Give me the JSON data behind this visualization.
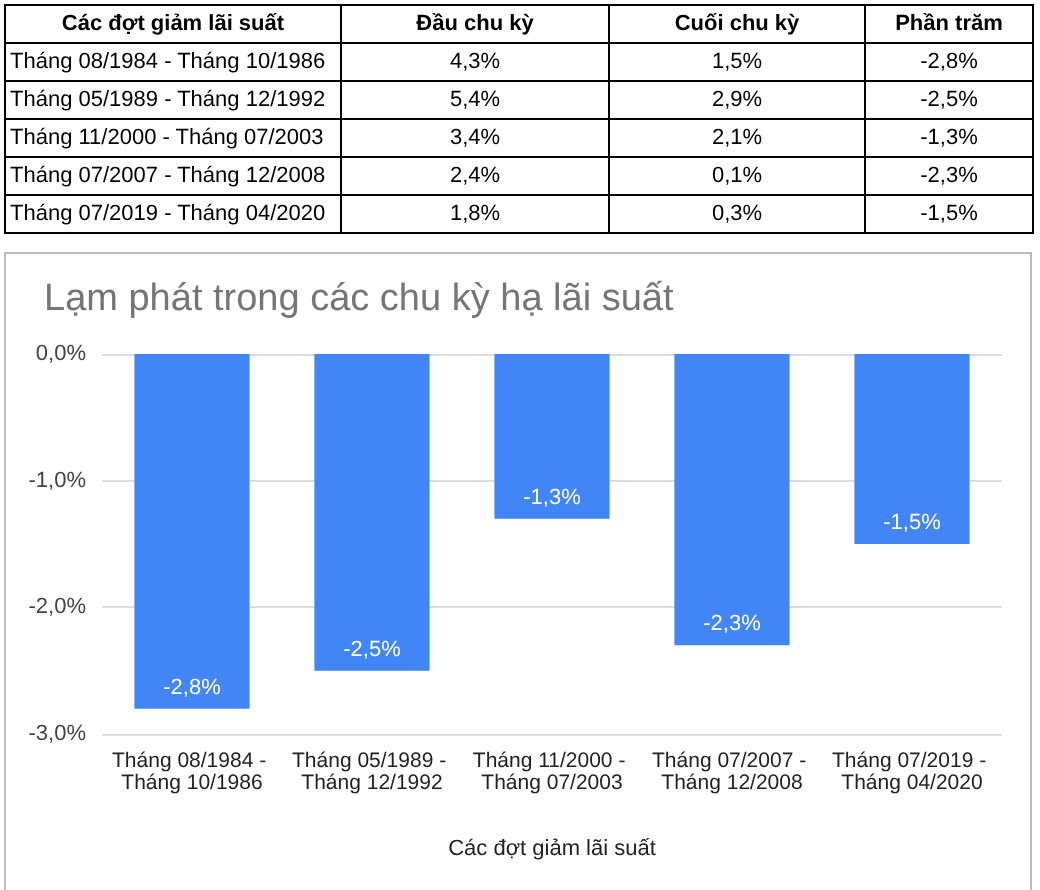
{
  "chart_data": [
    {
      "type": "other",
      "xlabel": "Các đợt giảm lãi suất",
      "categories": [
        "Tháng 08/1984 - Tháng 10/1986",
        "Tháng 05/1989 - Tháng 12/1992",
        "Tháng 11/2000 - Tháng 07/2003",
        "Tháng 07/2007 - Tháng 12/2008",
        "Tháng 07/2019 - Tháng 04/2020"
      ],
      "series": [
        {
          "name": "Đầu chu kỳ",
          "values": [
            4.3,
            5.4,
            3.4,
            2.4,
            1.8
          ],
          "value_labels": [
            "4,3%",
            "5,4%",
            "3,4%",
            "2,4%",
            "1,8%"
          ]
        },
        {
          "name": "Cuối chu kỳ",
          "values": [
            1.5,
            2.9,
            2.1,
            0.1,
            0.3
          ],
          "value_labels": [
            "1,5%",
            "2,9%",
            "2,1%",
            "0,1%",
            "0,3%"
          ]
        },
        {
          "name": "Phần trăm",
          "values": [
            -2.8,
            -2.5,
            -1.3,
            -2.3,
            -1.5
          ],
          "value_labels": [
            "-2,8%",
            "-2,5%",
            "-1,3%",
            "-2,3%",
            "-1,5%"
          ]
        }
      ]
    },
    {
      "type": "bar",
      "title": "Lạm phát trong các chu kỳ hạ lãi suất",
      "xlabel": "Các đợt giảm lãi suất",
      "categories": [
        "Tháng 08/1984 - Tháng 10/1986",
        "Tháng 05/1989 - Tháng 12/1992",
        "Tháng 11/2000 - Tháng 07/2003",
        "Tháng 07/2007 - Tháng 12/2008",
        "Tháng 07/2019 - Tháng 04/2020"
      ],
      "values": [
        -2.8,
        -2.5,
        -1.3,
        -2.3,
        -1.5
      ],
      "value_labels": [
        "-2,8%",
        "-2,5%",
        "-1,3%",
        "-2,3%",
        "-1,5%"
      ],
      "color": "#4285f4",
      "ylim": [
        -3,
        0
      ],
      "yticks": [
        {
          "value": -3,
          "label": "-3,0%"
        },
        {
          "value": -2,
          "label": "-2,0%"
        },
        {
          "value": -1,
          "label": "-1,0%"
        },
        {
          "value": 0,
          "label": "0,0%"
        }
      ],
      "grid": "y"
    }
  ]
}
